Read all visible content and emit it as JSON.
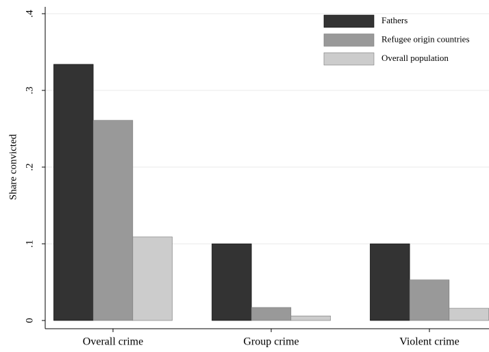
{
  "chart_data": {
    "type": "bar",
    "y_label": "Share convicted",
    "categories": [
      "Overall crime",
      "Group crime",
      "Violent crime"
    ],
    "series": [
      {
        "name": "Fathers",
        "color": "#333333",
        "values": [
          0.334,
          0.1,
          0.1
        ]
      },
      {
        "name": "Refugee origin countries",
        "color": "#999999",
        "values": [
          0.261,
          0.017,
          0.053
        ]
      },
      {
        "name": "Overall population",
        "color": "#cccccc",
        "values": [
          0.109,
          0.006,
          0.016
        ]
      }
    ],
    "ylim": [
      0,
      0.4
    ],
    "yticks": [
      0,
      {
        "value": 0.1,
        "label": ".1"
      },
      {
        "value": 0.2,
        "label": ".2"
      },
      {
        "value": 0.3,
        "label": ".3"
      },
      {
        "value": 0.4,
        "label": ".4"
      }
    ],
    "grid": true,
    "legend_position": "top-right"
  }
}
